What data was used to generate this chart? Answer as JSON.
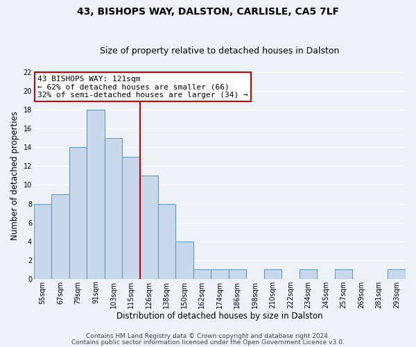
{
  "title": "43, BISHOPS WAY, DALSTON, CARLISLE, CA5 7LF",
  "subtitle": "Size of property relative to detached houses in Dalston",
  "xlabel": "Distribution of detached houses by size in Dalston",
  "ylabel": "Number of detached properties",
  "bar_labels": [
    "55sqm",
    "67sqm",
    "79sqm",
    "91sqm",
    "103sqm",
    "115sqm",
    "126sqm",
    "138sqm",
    "150sqm",
    "162sqm",
    "174sqm",
    "186sqm",
    "198sqm",
    "210sqm",
    "222sqm",
    "234sqm",
    "245sqm",
    "257sqm",
    "269sqm",
    "281sqm",
    "293sqm"
  ],
  "bar_heights": [
    8,
    9,
    14,
    18,
    15,
    13,
    11,
    8,
    4,
    1,
    1,
    1,
    0,
    1,
    0,
    1,
    0,
    1,
    0,
    0,
    1
  ],
  "bar_color": "#c8d8ec",
  "bar_edge_color": "#6699bb",
  "vline_x_idx": 5.5,
  "vline_color": "#cc0000",
  "annotation_line1": "43 BISHOPS WAY: 121sqm",
  "annotation_line2": "← 62% of detached houses are smaller (66)",
  "annotation_line3": "32% of semi-detached houses are larger (34) →",
  "annotation_box_color": "white",
  "annotation_box_edge_color": "#cc0000",
  "ylim": [
    0,
    22
  ],
  "yticks": [
    0,
    2,
    4,
    6,
    8,
    10,
    12,
    14,
    16,
    18,
    20,
    22
  ],
  "footer_line1": "Contains HM Land Registry data © Crown copyright and database right 2024.",
  "footer_line2": "Contains public sector information licensed under the Open Government Licence v3.0.",
  "background_color": "#eef2f7",
  "grid_color": "white",
  "title_fontsize": 10,
  "subtitle_fontsize": 9,
  "axis_label_fontsize": 8.5,
  "tick_fontsize": 7,
  "annotation_fontsize": 8,
  "footer_fontsize": 6.5
}
